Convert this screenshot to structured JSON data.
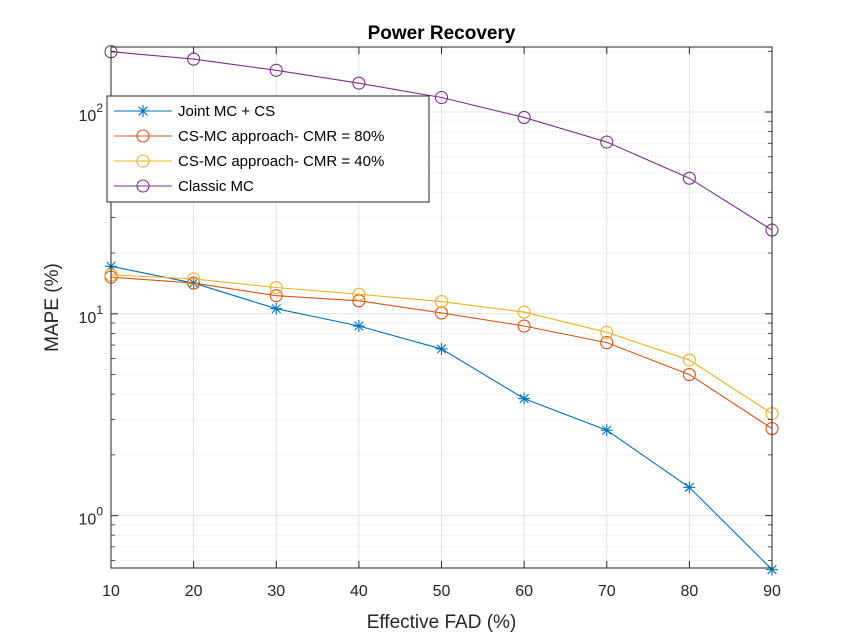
{
  "chart_data": {
    "type": "line",
    "title": "Power Recovery",
    "xlabel": "Effective FAD (%)",
    "ylabel": "MAPE (%)",
    "yscale": "log",
    "xlim": [
      10,
      90
    ],
    "ylim": [
      0.55,
      210
    ],
    "grid": true,
    "minor_grid": true,
    "legend_position": "top-left",
    "x": [
      10,
      20,
      30,
      40,
      50,
      60,
      70,
      80,
      90
    ],
    "xticks": [
      10,
      20,
      30,
      40,
      50,
      60,
      70,
      80,
      90
    ],
    "yticks": [
      {
        "value": 1,
        "base": "10",
        "exp": "0"
      },
      {
        "value": 10,
        "base": "10",
        "exp": "1"
      },
      {
        "value": 100,
        "base": "10",
        "exp": "2"
      }
    ],
    "series": [
      {
        "name": "Joint MC  + CS",
        "color": "#0072BD",
        "marker": "asterisk",
        "values": [
          17.2,
          14.2,
          10.6,
          8.7,
          6.7,
          3.8,
          2.65,
          1.38,
          0.54
        ]
      },
      {
        "name": "CS-MC approach- CMR = 80%",
        "color": "#D95319",
        "marker": "circle",
        "values": [
          15.2,
          14.2,
          12.3,
          11.6,
          10.1,
          8.7,
          7.2,
          5.0,
          2.7
        ]
      },
      {
        "name": "CS-MC approach- CMR = 40%",
        "color": "#EDB120",
        "marker": "circle",
        "values": [
          15.6,
          14.9,
          13.5,
          12.5,
          11.5,
          10.2,
          8.1,
          5.9,
          3.2
        ]
      },
      {
        "name": "Classic MC",
        "color": "#7E2F8E",
        "marker": "circle",
        "values": [
          199,
          183,
          161,
          139,
          118,
          94,
          71,
          47,
          26
        ]
      }
    ]
  }
}
